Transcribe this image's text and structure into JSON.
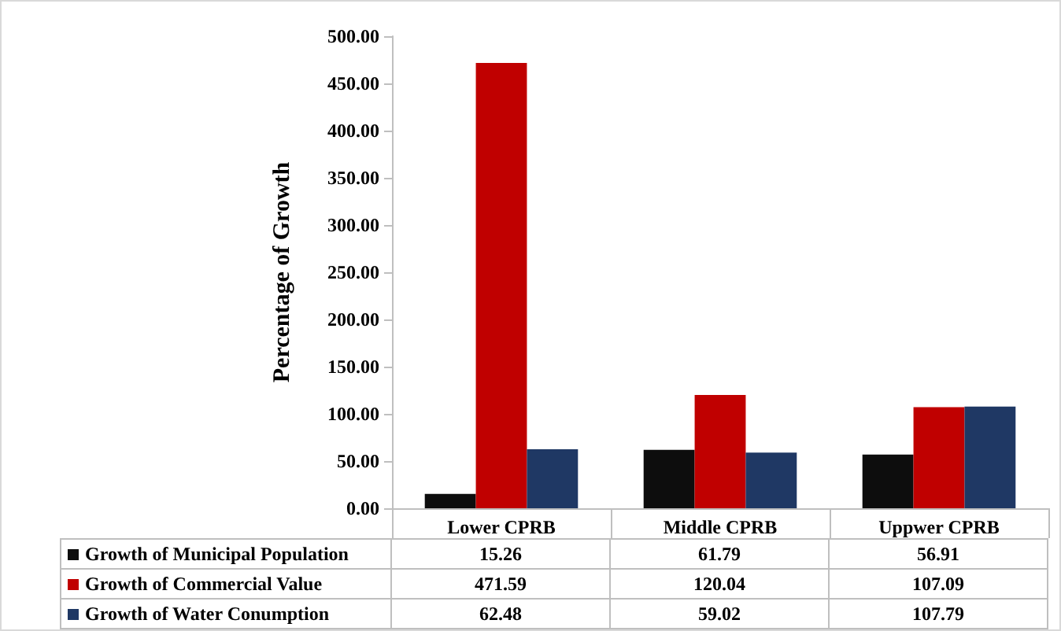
{
  "chart_data": {
    "type": "bar",
    "ylabel": "Percentage of Growth",
    "categories": [
      "Lower CPRB",
      "Middle CPRB",
      "Uppwer CPRB"
    ],
    "series": [
      {
        "name": "Growth of Municipal Population",
        "color": "#0d0d0d",
        "values": [
          15.26,
          61.79,
          56.91
        ]
      },
      {
        "name": "Growth of Commercial Value",
        "color": "#c00000",
        "values": [
          471.59,
          120.04,
          107.09
        ]
      },
      {
        "name": "Growth of Water Conumption",
        "color": "#1f3864",
        "values": [
          62.48,
          59.02,
          107.79
        ]
      }
    ],
    "ylim": [
      0,
      500
    ],
    "yticks": [
      {
        "value": 0,
        "label": "0.00"
      },
      {
        "value": 50,
        "label": "50.00"
      },
      {
        "value": 100,
        "label": "100.00"
      },
      {
        "value": 150,
        "label": "150.00"
      },
      {
        "value": 200,
        "label": "200.00"
      },
      {
        "value": 250,
        "label": "250.00"
      },
      {
        "value": 300,
        "label": "300.00"
      },
      {
        "value": 350,
        "label": "350.00"
      },
      {
        "value": 400,
        "label": "400.00"
      },
      {
        "value": 450,
        "label": "450.00"
      },
      {
        "value": 500,
        "label": "500.00"
      }
    ],
    "grid": false,
    "legend": "bottom",
    "data_labels": true
  }
}
